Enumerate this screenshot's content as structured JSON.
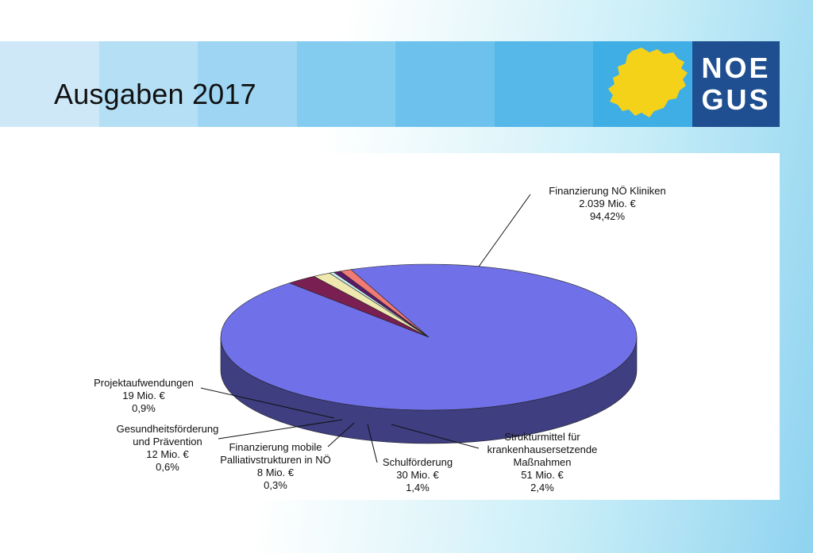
{
  "slide": {
    "title": "Ausgaben 2017",
    "logo_line1": "NOE",
    "logo_line2": "GUS",
    "colors": {
      "banner_segments": [
        "#cfe8f8",
        "#b5dff5",
        "#9dd5f2",
        "#84ccef",
        "#6cc2ec",
        "#55b8e8",
        "#3eaee5"
      ],
      "logo_blue": "#1f4f90",
      "map_yellow": "#f5d21a"
    }
  },
  "chart_data": {
    "type": "pie",
    "title": "",
    "unit": "Mio. €",
    "slices": [
      {
        "name": "Finanzierung NÖ Kliniken",
        "value": 2039,
        "value_label": "2.039 Mio. €",
        "percent": 94.42,
        "percent_label": "94,42%",
        "color": "#7070e8",
        "lines": [
          "Finanzierung NÖ Kliniken"
        ]
      },
      {
        "name": "Strukturmittel für krankenhausersetzende Maßnahmen",
        "value": 51,
        "value_label": "51 Mio. €",
        "percent": 2.4,
        "percent_label": "2,4%",
        "color": "#7a1f52",
        "lines": [
          "Strukturmittel für",
          "krankenhausersetzende",
          "Maßnahmen"
        ]
      },
      {
        "name": "Schulförderung",
        "value": 30,
        "value_label": "30 Mio. €",
        "percent": 1.4,
        "percent_label": "1,4%",
        "color": "#efe9b0",
        "lines": [
          "Schulförderung"
        ]
      },
      {
        "name": "Finanzierung mobile Palliativstrukturen in NÖ",
        "value": 8,
        "value_label": "8 Mio. €",
        "percent": 0.3,
        "percent_label": "0,3%",
        "color": "#c9eef3",
        "lines": [
          "Finanzierung mobile",
          "Palliativstrukturen in NÖ"
        ]
      },
      {
        "name": "Gesundheitsförderung und Prävention",
        "value": 12,
        "value_label": "12 Mio. €",
        "percent": 0.6,
        "percent_label": "0,6%",
        "color": "#5a1a6a",
        "lines": [
          "Gesundheitsförderung",
          "und Prävention"
        ]
      },
      {
        "name": "Projektaufwendungen",
        "value": 19,
        "value_label": "19 Mio. €",
        "percent": 0.9,
        "percent_label": "0,9%",
        "color": "#f07a74",
        "lines": [
          "Projektaufwendungen"
        ]
      }
    ]
  }
}
